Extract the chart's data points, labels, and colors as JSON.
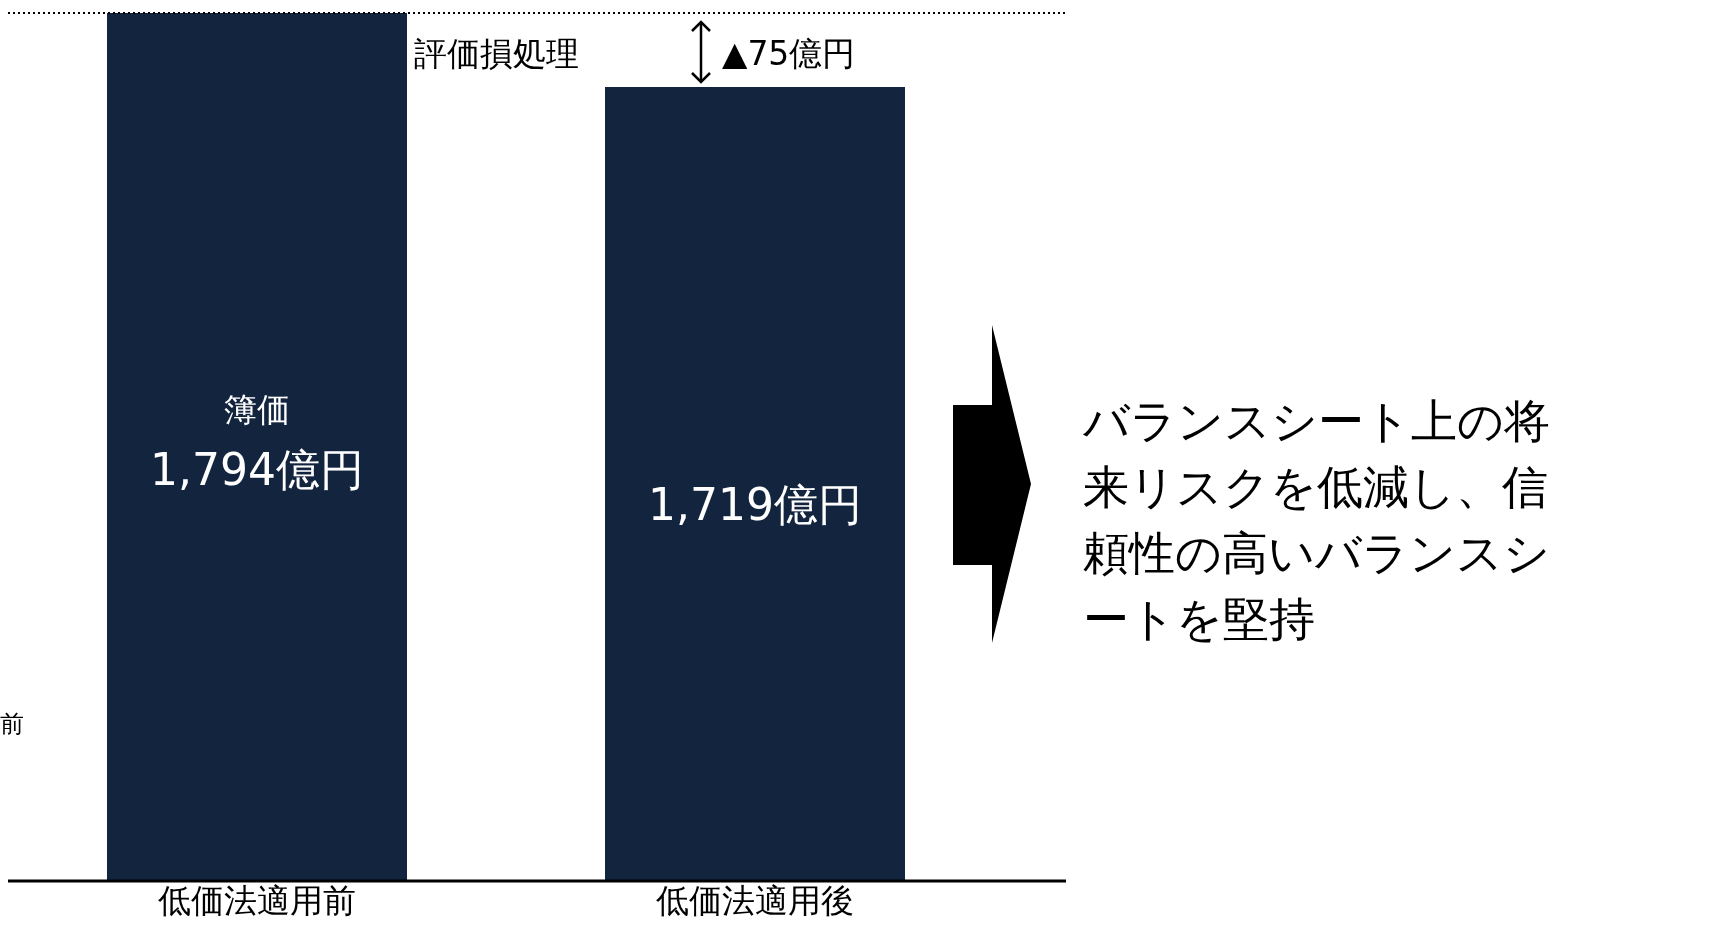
{
  "chart_data": {
    "type": "bar",
    "categories": [
      "低価法適用前",
      "低価法適用後"
    ],
    "values": [
      1794,
      1719
    ],
    "color": "#13243f",
    "value_labels": [
      "1,794億円",
      "1,719億円"
    ],
    "ylim": [
      914,
      1794
    ],
    "grid": false,
    "legend": false,
    "tick_labels": "x",
    "ref_lines": [
      {
        "axis": "y",
        "value": 1794,
        "line_style": "dotted",
        "color": "#000000"
      }
    ],
    "annotations": [
      "簿価",
      "評価損処理",
      "▲75億円",
      "バランスシート上の将来リスクを低減し、信頼性の高いバランスシートを堅持",
      "前"
    ]
  }
}
